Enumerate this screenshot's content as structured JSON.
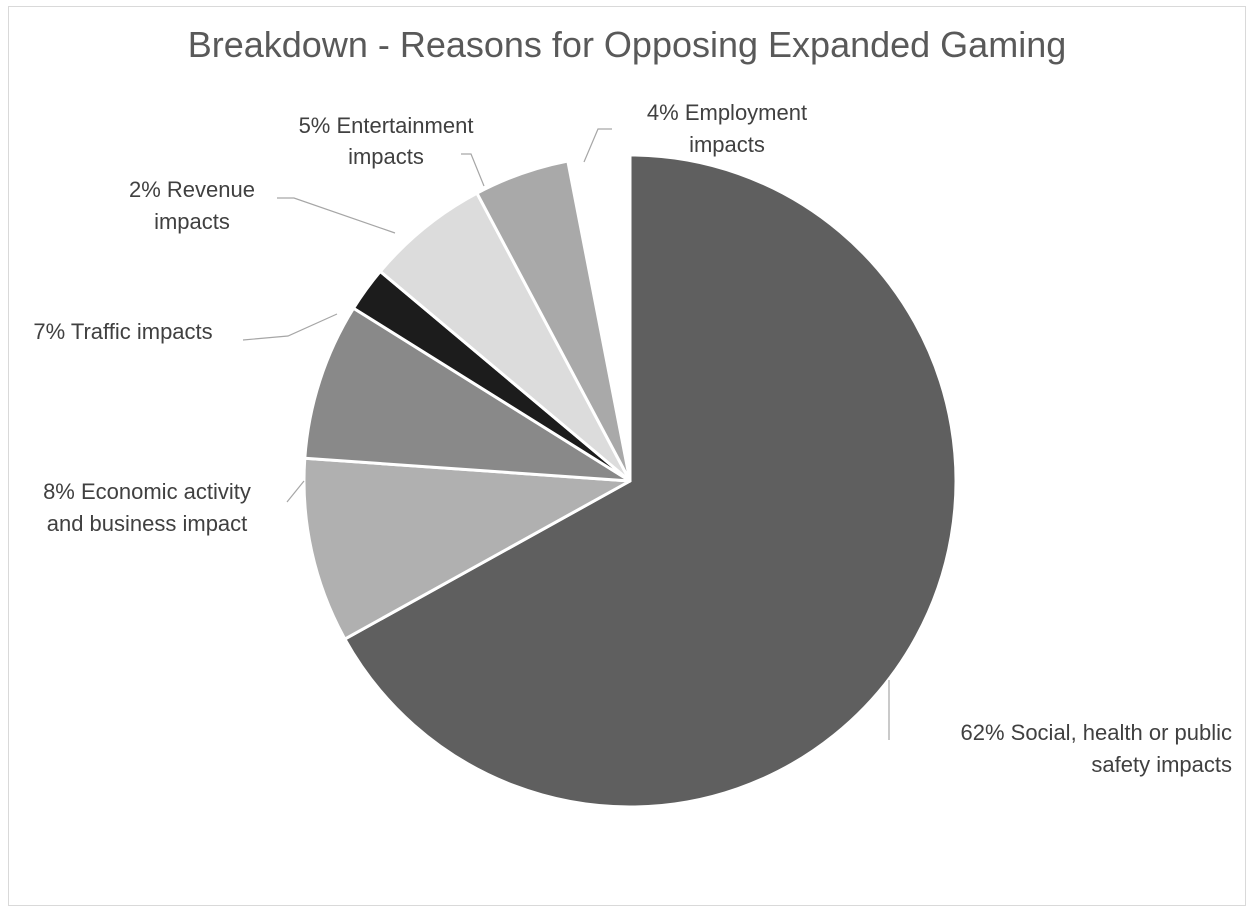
{
  "chart_data": {
    "type": "pie",
    "title": "Breakdown - Reasons for Opposing Expanded Gaming",
    "slices": [
      {
        "name": "Social, health or public safety impacts",
        "value": 62,
        "label_lines": [
          "62% Social, health or public",
          "safety impacts"
        ],
        "color": "#5f5f5f"
      },
      {
        "name": "Economic activity and business impact",
        "value": 8,
        "label_lines": [
          "8% Economic activity",
          "and business impact"
        ],
        "color": "#b0b0b0"
      },
      {
        "name": "Traffic impacts",
        "value": 7,
        "label_lines": [
          "7% Traffic impacts"
        ],
        "color": "#898989"
      },
      {
        "name": "Revenue impacts",
        "value": 2,
        "label_lines": [
          "2% Revenue",
          "impacts"
        ],
        "color": "#1c1c1c"
      },
      {
        "name": "Entertainment impacts",
        "value": 5,
        "label_lines": [
          "5% Entertainment",
          "impacts"
        ],
        "color": "#dcdcdc"
      },
      {
        "name": "Employment impacts",
        "value": 4,
        "label_lines": [
          "4% Employment",
          "impacts"
        ],
        "color": "#a9a9a9"
      }
    ],
    "legend": "none"
  }
}
